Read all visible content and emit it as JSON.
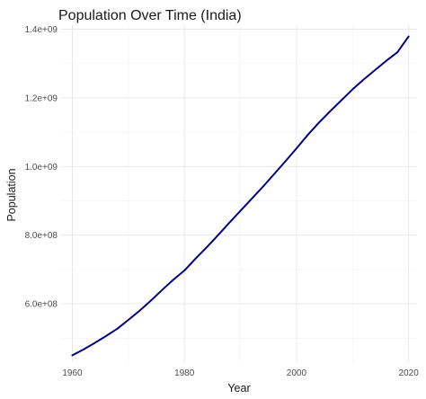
{
  "chart_data": {
    "type": "line",
    "title": "Population Over Time (India)",
    "xlabel": "Year",
    "ylabel": "Population",
    "xlim": [
      1958,
      2021.5
    ],
    "ylim": [
      430000000,
      1412000000
    ],
    "grid": true,
    "legend": "none",
    "x_ticks": [
      1960,
      1980,
      2000,
      2020
    ],
    "x_tick_labels": [
      "1960",
      "1980",
      "2000",
      "2020"
    ],
    "y_ticks": [
      600000000,
      800000000,
      1000000000,
      1200000000,
      1400000000
    ],
    "y_tick_labels": [
      "6.0e+08",
      "8.0e+08",
      "1.0e+09",
      "1.2e+09",
      "1.4e+09"
    ],
    "series": [
      {
        "color": "#000080",
        "x": [
          1960,
          1962,
          1964,
          1966,
          1968,
          1970,
          1972,
          1974,
          1976,
          1978,
          1980,
          1982,
          1984,
          1986,
          1988,
          1990,
          1992,
          1994,
          1996,
          1998,
          2000,
          2002,
          2004,
          2006,
          2008,
          2010,
          2012,
          2014,
          2016,
          2018,
          2020
        ],
        "y": [
          450000000,
          467000000,
          486000000,
          506000000,
          527000000,
          553000000,
          580000000,
          609000000,
          640000000,
          670000000,
          697000000,
          732000000,
          765000000,
          800000000,
          836000000,
          871000000,
          906000000,
          941000000,
          978000000,
          1015000000,
          1053000000,
          1092000000,
          1128000000,
          1161000000,
          1193000000,
          1225000000,
          1254000000,
          1281000000,
          1308000000,
          1333000000,
          1379000000
        ]
      }
    ]
  }
}
